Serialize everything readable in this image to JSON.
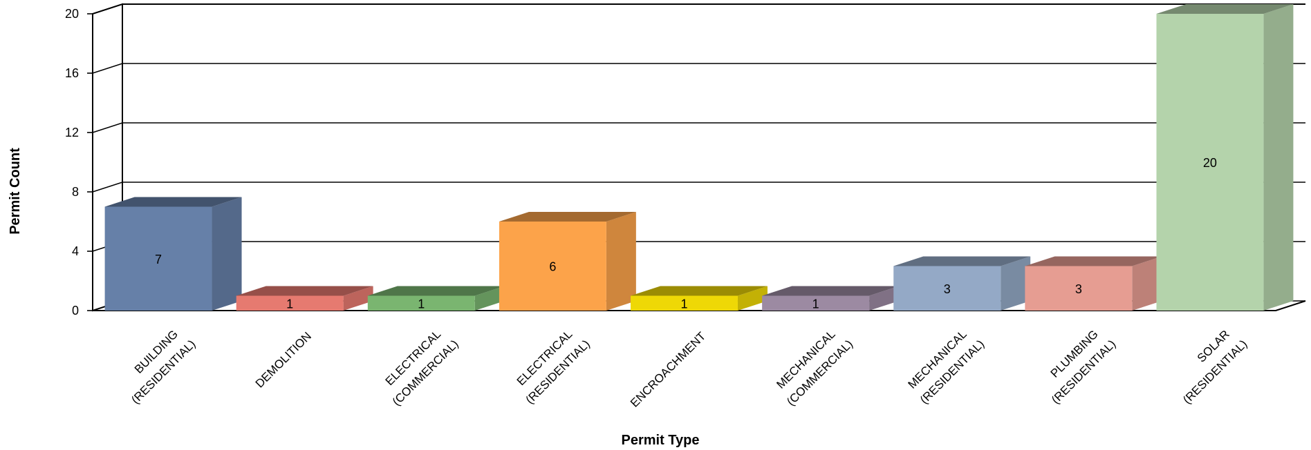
{
  "chart_data": {
    "type": "bar",
    "xlabel": "Permit Type",
    "ylabel": "Permit Count",
    "ylim": [
      0,
      20
    ],
    "yticks": [
      "0",
      "4",
      "8",
      "12",
      "16",
      "20"
    ],
    "grid": true,
    "categories": [
      [
        "BUILDING",
        "(RESIDENTIAL)"
      ],
      [
        "DEMOLITION"
      ],
      [
        "ELECTRICAL",
        "(COMMERCIAL)"
      ],
      [
        "ELECTRICAL",
        "(RESIDENTIAL)"
      ],
      [
        "ENCROACHMENT"
      ],
      [
        "MECHANICAL",
        "(COMMERCIAL)"
      ],
      [
        "MECHANICAL",
        "(RESIDENTIAL)"
      ],
      [
        "PLUMBING",
        "(RESIDENTIAL)"
      ],
      [
        "SOLAR",
        "(RESIDENTIAL)"
      ]
    ],
    "values": [
      7,
      1,
      1,
      6,
      1,
      1,
      3,
      3,
      20
    ],
    "data_labels": [
      "7",
      "1",
      "1",
      "6",
      "1",
      "1",
      "3",
      "3",
      "20"
    ],
    "colors": [
      "#6680a8",
      "#e67a70",
      "#7ab570",
      "#fca34a",
      "#eed806",
      "#9c8aa2",
      "#94a9c6",
      "#e69d92",
      "#b4d3ab"
    ]
  }
}
